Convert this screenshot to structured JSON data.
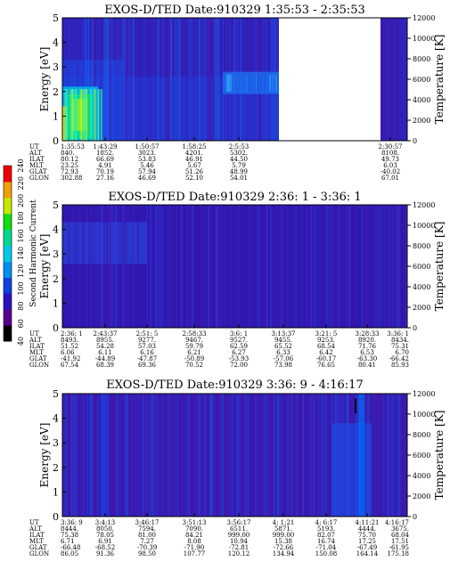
{
  "chart_data": [
    {
      "type": "heatmap",
      "title": "EXOS-D/TED   Date:910329  1:35:53 - 2:35:53",
      "ylabel": "Energy [eV]",
      "y2label": "Temperature [K]",
      "ylim": [
        0,
        5
      ],
      "yticks": [
        "0",
        "1",
        "2",
        "3",
        "4",
        "5"
      ],
      "y2lim": [
        0,
        12000
      ],
      "y2ticks": [
        "0",
        "2000",
        "4000",
        "6000",
        "8000",
        "10000",
        "12000"
      ],
      "data_gap": [
        "2:5:53",
        "2:30:57"
      ],
      "ephemeris": {
        "labels": [
          "UT",
          "ALT",
          "ILAT",
          "MLT",
          "GLAT",
          "GLON"
        ],
        "columns": [
          [
            "1:35:53",
            "840.",
            "80.12",
            "23.25",
            "72.93",
            "302.88"
          ],
          [
            "1:43:29",
            "1852.",
            "66.69",
            "4.91",
            "70.19",
            "27.16"
          ],
          [
            "1:50:57",
            "3023.",
            "53.83",
            "5.46",
            "57.94",
            "46.69"
          ],
          [
            "1:58:25",
            "4201.",
            "46.91",
            "5.67",
            "51.26",
            "52.10"
          ],
          [
            "2:5:53",
            "5302.",
            "44.50",
            "5.79",
            "48.99",
            "54.01"
          ],
          [
            "2:30:57",
            "8108.",
            "49.73",
            "6.03",
            "-40.02",
            "67.01"
          ]
        ]
      }
    },
    {
      "type": "heatmap",
      "title": "EXOS-D/TED   Date:910329  2:36: 1 - 3:36: 1",
      "ylabel": "Energy [eV]",
      "y2label": "Temperature [K]",
      "ylim": [
        0,
        5
      ],
      "yticks": [
        "0",
        "1",
        "2",
        "3",
        "4",
        "5"
      ],
      "y2lim": [
        0,
        12000
      ],
      "y2ticks": [
        "0",
        "2000",
        "4000",
        "6000",
        "8000",
        "10000",
        "12000"
      ],
      "ephemeris": {
        "labels": [
          "UT",
          "ALT",
          "ILAT",
          "MLT",
          "GLAT",
          "GLON"
        ],
        "columns": [
          [
            "2:36: 1",
            "8493.",
            "51.52",
            "6.06",
            "-41.92",
            "67.54"
          ],
          [
            "2:43:37",
            "8955.",
            "54.28",
            "6.11",
            "-44.89",
            "68.39"
          ],
          [
            "2:51: 5",
            "9277.",
            "57.03",
            "6.16",
            "-47.87",
            "69.36"
          ],
          [
            "2:58:33",
            "9467.",
            "59.79",
            "6.21",
            "-50.89",
            "70.52"
          ],
          [
            "3:6: 1",
            "9527.",
            "62.59",
            "6.27",
            "-53.93",
            "72.00"
          ],
          [
            "3:13:37",
            "9455.",
            "65.52",
            "6.33",
            "-57.06",
            "73.98"
          ],
          [
            "3:21: 5",
            "9253.",
            "68.54",
            "6.42",
            "-60.17",
            "76.65"
          ],
          [
            "3:28:33",
            "8920.",
            "71.76",
            "6.53",
            "-63.30",
            "80.41"
          ],
          [
            "3:36: 1",
            "8434.",
            "75.31",
            "6.70",
            "-66.42",
            "85.93"
          ]
        ]
      }
    },
    {
      "type": "heatmap",
      "title": "EXOS-D/TED   Date:910329  3:36: 9 - 4:16:17",
      "ylabel": "Energy [eV]",
      "y2label": "Temperature [K]",
      "ylim": [
        0,
        5
      ],
      "yticks": [
        "0",
        "1",
        "2",
        "3",
        "4",
        "5"
      ],
      "y2lim": [
        0,
        12000
      ],
      "y2ticks": [
        "0",
        "2000",
        "4000",
        "6000",
        "8000",
        "10000",
        "12000"
      ],
      "ephemeris": {
        "labels": [
          "UT",
          "ALT",
          "ILAT",
          "MLT",
          "GLAT",
          "GLON"
        ],
        "columns": [
          [
            "3:36: 9",
            "8444.",
            "75.38",
            "6.71",
            "-66.48",
            "86.05"
          ],
          [
            "3:4:13",
            "8050.",
            "78.05",
            "6.91",
            "-68.52",
            "91.36"
          ],
          [
            "3:46:17",
            "7594.",
            "81.00",
            "7.27",
            "-70.39",
            "98.50"
          ],
          [
            "3:51:13",
            "7090.",
            "84.21",
            "8.08",
            "-71.90",
            "107.77"
          ],
          [
            "3:56:17",
            "6511.",
            "999.00",
            "10.94",
            "-72.81",
            "120.12"
          ],
          [
            "4: 1:21",
            "5871.",
            "999.00",
            "15.38",
            "-72.66",
            "134.94"
          ],
          [
            "4: 6:17",
            "5193.",
            "82.07",
            "16.74",
            "-71.04",
            "150.08"
          ],
          [
            "4:11:21",
            "4444.",
            "75.70",
            "17.25",
            "-67.49",
            "164.14"
          ],
          [
            "4:16:17",
            "3675.",
            "68.04",
            "17.51",
            "-61.95",
            "175.18"
          ]
        ]
      }
    }
  ],
  "colorbar": {
    "label": "Second Harmonic Current",
    "ticks": [
      "40",
      "60",
      "80",
      "100",
      "120",
      "140",
      "160",
      "180",
      "200",
      "220",
      "240"
    ],
    "range": [
      40,
      240
    ],
    "colors": [
      "#000000",
      "#5a0090",
      "#2a10c0",
      "#1040e0",
      "#0090f0",
      "#00c8e8",
      "#00d890",
      "#10e010",
      "#c8e800",
      "#f0a000",
      "#f00000"
    ]
  }
}
